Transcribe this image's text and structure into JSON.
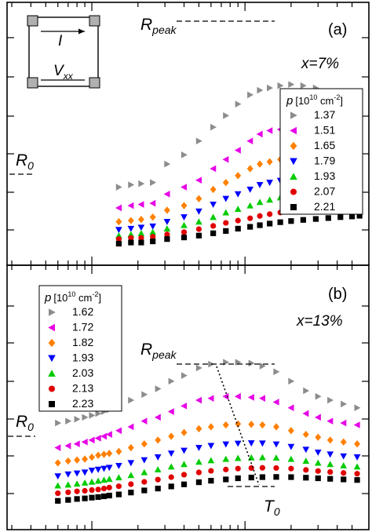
{
  "chart_data": [
    {
      "panel_label": "(a)",
      "type": "scatter",
      "x_scale": "log",
      "xlim": [
        0.003,
        0.6
      ],
      "ylim": [
        0,
        100
      ],
      "ticks_labeled": false,
      "annotations": {
        "panel": "(a)",
        "composition": "x=7%",
        "r_peak": "R",
        "r_peak_sub": "peak",
        "r_zero": "R",
        "r_zero_sub": "0",
        "inset_current": "I",
        "inset_voltage": "V",
        "inset_voltage_sub": "xx"
      },
      "legend": {
        "title_prefix": "p",
        "title_units": "[10",
        "title_exp": "10",
        "title_suffix": " cm",
        "title_exp2": "-2",
        "title_close": "]",
        "placement": "right"
      },
      "series": [
        {
          "name": "1.37",
          "marker": "triangle-right",
          "color": "#8c8c8c",
          "x": [
            0.015,
            0.018,
            0.021,
            0.025,
            0.031,
            0.04,
            0.05,
            0.062,
            0.075,
            0.09,
            0.108,
            0.125,
            0.145,
            0.17,
            0.2,
            0.24,
            0.29,
            0.35,
            0.42,
            0.5,
            0.56
          ],
          "y": [
            25,
            26,
            26.5,
            27,
            35,
            39,
            45,
            51,
            56,
            61,
            65,
            67,
            68,
            69,
            69.5,
            69,
            68,
            66,
            63,
            61,
            59
          ]
        },
        {
          "name": "1.51",
          "marker": "triangle-left",
          "color": "#e600e6",
          "x": [
            0.015,
            0.018,
            0.021,
            0.025,
            0.031,
            0.04,
            0.05,
            0.062,
            0.075,
            0.09,
            0.108,
            0.125,
            0.145,
            0.17,
            0.2,
            0.24,
            0.29,
            0.35,
            0.42,
            0.5,
            0.56
          ],
          "y": [
            16,
            17,
            17.5,
            18,
            22,
            25,
            28,
            33,
            37,
            41,
            45,
            48,
            49.5,
            50,
            50,
            49.8,
            49.5,
            49,
            48.5,
            48,
            47.5
          ]
        },
        {
          "name": "1.65",
          "marker": "diamond",
          "color": "#ff8000",
          "x": [
            0.015,
            0.018,
            0.021,
            0.025,
            0.031,
            0.04,
            0.05,
            0.062,
            0.075,
            0.09,
            0.108,
            0.125,
            0.145,
            0.17,
            0.2,
            0.24,
            0.29,
            0.35,
            0.42,
            0.5,
            0.56
          ],
          "y": [
            10,
            10.5,
            11,
            12,
            15,
            17,
            20,
            24,
            27,
            30,
            33,
            35,
            36,
            37,
            37.5,
            37.5,
            37.5,
            37.3,
            37.2,
            37.1,
            37
          ]
        },
        {
          "name": "1.79",
          "marker": "triangle-down",
          "color": "#0000ff",
          "x": [
            0.015,
            0.018,
            0.021,
            0.025,
            0.031,
            0.04,
            0.05,
            0.062,
            0.075,
            0.09,
            0.108,
            0.125,
            0.145,
            0.17,
            0.2,
            0.24,
            0.29,
            0.35,
            0.42,
            0.5,
            0.56
          ],
          "y": [
            6.5,
            7,
            7.5,
            8,
            10,
            12,
            14.5,
            17.5,
            20,
            22,
            24,
            26,
            27,
            27.8,
            28.4,
            28.8,
            29,
            29.1,
            29.2,
            29.2,
            29.2
          ]
        },
        {
          "name": "1.93",
          "marker": "triangle-up",
          "color": "#00cc00",
          "x": [
            0.015,
            0.018,
            0.021,
            0.025,
            0.031,
            0.04,
            0.05,
            0.062,
            0.075,
            0.09,
            0.108,
            0.125,
            0.145,
            0.17,
            0.2,
            0.24,
            0.29,
            0.35,
            0.42,
            0.5,
            0.56
          ],
          "y": [
            4,
            4.5,
            5,
            5.5,
            7,
            8.5,
            10,
            12,
            14,
            15.5,
            17,
            18.5,
            19.5,
            20.5,
            21.2,
            21.6,
            22,
            22.2,
            22.4,
            22.5,
            22.5
          ]
        },
        {
          "name": "2.07",
          "marker": "circle",
          "color": "#e00000",
          "x": [
            0.015,
            0.018,
            0.021,
            0.025,
            0.031,
            0.04,
            0.05,
            0.062,
            0.075,
            0.09,
            0.108,
            0.125,
            0.145,
            0.17,
            0.2,
            0.24,
            0.29,
            0.35,
            0.42,
            0.5,
            0.56
          ],
          "y": [
            2.5,
            3,
            3,
            3.5,
            4.5,
            5.5,
            6.8,
            8.2,
            9.5,
            10.5,
            11.5,
            12.5,
            13.3,
            14,
            14.6,
            15,
            15.4,
            15.8,
            16.1,
            16.3,
            16.5
          ]
        },
        {
          "name": "2.21",
          "marker": "square",
          "color": "#000000",
          "x": [
            0.015,
            0.018,
            0.021,
            0.025,
            0.031,
            0.04,
            0.05,
            0.062,
            0.075,
            0.09,
            0.108,
            0.125,
            0.145,
            0.17,
            0.2,
            0.24,
            0.29,
            0.35,
            0.42,
            0.5,
            0.56
          ],
          "y": [
            0.5,
            1,
            1,
            1.5,
            2.5,
            3.2,
            4,
            5,
            6,
            7,
            7.8,
            8.5,
            9.2,
            9.8,
            10.3,
            10.8,
            11.2,
            11.6,
            12,
            12.3,
            12.6
          ]
        }
      ]
    },
    {
      "panel_label": "(b)",
      "type": "scatter",
      "x_scale": "log",
      "xlim": [
        0.003,
        0.6
      ],
      "ylim": [
        0,
        100
      ],
      "ticks_labeled": false,
      "annotations": {
        "panel": "(b)",
        "composition": "x=13%",
        "r_peak": "R",
        "r_peak_sub": "peak",
        "r_zero": "R",
        "r_zero_sub": "0",
        "t_zero": "T",
        "t_zero_sub": "0"
      },
      "legend": {
        "title_prefix": "p",
        "title_units": "[10",
        "title_exp": "10",
        "title_suffix": " cm",
        "title_exp2": "-2",
        "title_close": "]",
        "placement": "top-left"
      },
      "series": [
        {
          "name": "1.62",
          "marker": "triangle-right",
          "color": "#8c8c8c",
          "x": [
            0.006,
            0.007,
            0.008,
            0.009,
            0.01,
            0.011,
            0.012,
            0.013,
            0.015,
            0.018,
            0.022,
            0.027,
            0.033,
            0.04,
            0.05,
            0.06,
            0.075,
            0.09,
            0.11,
            0.13,
            0.16,
            0.2,
            0.25,
            0.3,
            0.36,
            0.44,
            0.54
          ],
          "y": [
            45,
            46,
            47,
            48,
            49,
            50,
            51,
            52,
            54,
            57,
            60,
            63,
            67,
            70,
            74,
            76,
            77,
            77,
            76.5,
            75,
            72,
            67,
            62,
            59,
            57,
            55,
            53
          ]
        },
        {
          "name": "1.72",
          "marker": "triangle-left",
          "color": "#e600e6",
          "x": [
            0.006,
            0.007,
            0.008,
            0.009,
            0.01,
            0.011,
            0.012,
            0.013,
            0.015,
            0.018,
            0.022,
            0.027,
            0.033,
            0.04,
            0.05,
            0.06,
            0.075,
            0.09,
            0.11,
            0.13,
            0.16,
            0.2,
            0.25,
            0.3,
            0.36,
            0.44,
            0.54
          ],
          "y": [
            32,
            33,
            34,
            35,
            36,
            37,
            38,
            39,
            41,
            43,
            46,
            48,
            51,
            54,
            57,
            58,
            59,
            59,
            58.5,
            58,
            56,
            53,
            50,
            48,
            46,
            45,
            44
          ]
        },
        {
          "name": "1.82",
          "marker": "diamond",
          "color": "#ff8000",
          "x": [
            0.006,
            0.007,
            0.008,
            0.009,
            0.01,
            0.011,
            0.012,
            0.013,
            0.015,
            0.018,
            0.022,
            0.027,
            0.033,
            0.04,
            0.05,
            0.06,
            0.075,
            0.09,
            0.11,
            0.13,
            0.16,
            0.2,
            0.25,
            0.3,
            0.36,
            0.44,
            0.54
          ],
          "y": [
            24,
            25,
            25.5,
            26,
            27,
            28,
            28.5,
            29,
            30,
            32,
            34,
            36,
            38,
            40,
            42,
            43,
            44,
            44.5,
            44.3,
            44,
            43,
            41,
            39,
            37.5,
            36,
            35,
            34
          ]
        },
        {
          "name": "1.93",
          "marker": "triangle-down",
          "color": "#0000ff",
          "x": [
            0.006,
            0.007,
            0.008,
            0.009,
            0.01,
            0.011,
            0.012,
            0.013,
            0.015,
            0.018,
            0.022,
            0.027,
            0.033,
            0.04,
            0.05,
            0.06,
            0.075,
            0.09,
            0.11,
            0.13,
            0.16,
            0.2,
            0.25,
            0.3,
            0.36,
            0.44,
            0.54
          ],
          "y": [
            17,
            18,
            18.5,
            19,
            20,
            20.5,
            21,
            21.5,
            22.5,
            24,
            25.5,
            27,
            29,
            30.5,
            32,
            33,
            33.8,
            34.2,
            34.4,
            34.3,
            33.8,
            32.5,
            31,
            29.5,
            28.5,
            27.5,
            27
          ]
        },
        {
          "name": "2.03",
          "marker": "triangle-up",
          "color": "#00cc00",
          "x": [
            0.006,
            0.007,
            0.008,
            0.009,
            0.01,
            0.011,
            0.012,
            0.013,
            0.015,
            0.018,
            0.022,
            0.027,
            0.033,
            0.04,
            0.05,
            0.06,
            0.075,
            0.09,
            0.11,
            0.13,
            0.16,
            0.2,
            0.25,
            0.3,
            0.36,
            0.44,
            0.54
          ],
          "y": [
            12,
            12.5,
            13,
            13.5,
            14,
            14.5,
            15,
            15.5,
            16.3,
            17.5,
            19,
            20.5,
            22,
            23.3,
            24.5,
            25.3,
            26,
            26.5,
            26.8,
            26.9,
            26.7,
            26,
            25,
            24,
            23.3,
            22.6,
            22
          ]
        },
        {
          "name": "2.13",
          "marker": "circle",
          "color": "#e00000",
          "x": [
            0.006,
            0.007,
            0.008,
            0.009,
            0.01,
            0.011,
            0.012,
            0.013,
            0.015,
            0.018,
            0.022,
            0.027,
            0.033,
            0.04,
            0.05,
            0.06,
            0.075,
            0.09,
            0.11,
            0.13,
            0.16,
            0.2,
            0.25,
            0.3,
            0.36,
            0.44,
            0.54
          ],
          "y": [
            8,
            8.5,
            9,
            9.3,
            9.7,
            10,
            10.5,
            11,
            11.7,
            12.8,
            14,
            15.2,
            16.5,
            17.8,
            19,
            19.8,
            20.5,
            21,
            21.3,
            21.4,
            21.3,
            21,
            20.3,
            19.7,
            19.2,
            18.7,
            18.3
          ]
        },
        {
          "name": "2.23",
          "marker": "square",
          "color": "#000000",
          "x": [
            0.006,
            0.007,
            0.008,
            0.009,
            0.01,
            0.011,
            0.012,
            0.013,
            0.015,
            0.018,
            0.022,
            0.027,
            0.033,
            0.04,
            0.05,
            0.06,
            0.075,
            0.09,
            0.11,
            0.13,
            0.16,
            0.2,
            0.25,
            0.3,
            0.36,
            0.44,
            0.54
          ],
          "y": [
            4,
            4.5,
            5,
            5.3,
            5.7,
            6,
            6.4,
            6.8,
            7.4,
            8.4,
            9.5,
            10.5,
            11.6,
            12.7,
            13.8,
            14.6,
            15.3,
            15.9,
            16.3,
            16.5,
            16.6,
            16.5,
            16.2,
            15.9,
            15.6,
            15.3,
            15
          ]
        }
      ]
    }
  ]
}
